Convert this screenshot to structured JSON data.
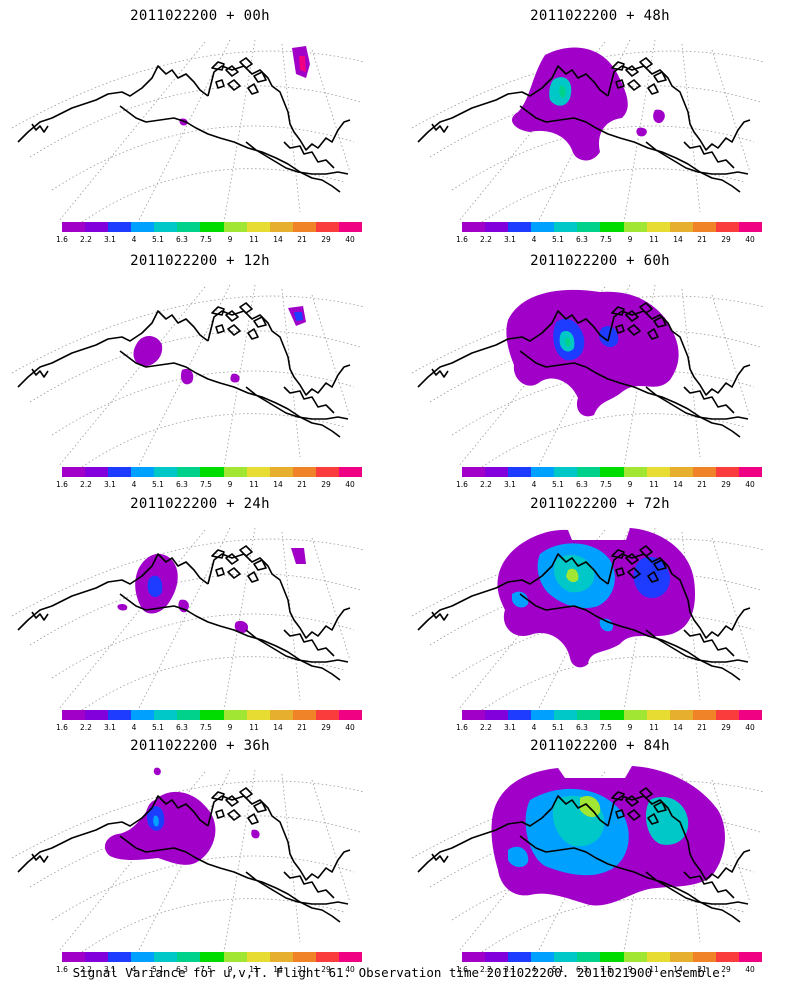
{
  "panels": [
    {
      "title": "2011022200 + 00h",
      "lead_hours": "00h"
    },
    {
      "title": "2011022200 + 48h",
      "lead_hours": "48h"
    },
    {
      "title": "2011022200 + 12h",
      "lead_hours": "12h"
    },
    {
      "title": "2011022200 + 60h",
      "lead_hours": "60h"
    },
    {
      "title": "2011022200 + 24h",
      "lead_hours": "24h"
    },
    {
      "title": "2011022200 + 72h",
      "lead_hours": "72h"
    },
    {
      "title": "2011022200 + 36h",
      "lead_hours": "36h"
    },
    {
      "title": "2011022200 + 84h",
      "lead_hours": "84h"
    }
  ],
  "colorbar": {
    "labels": [
      "1.6",
      "2.2",
      "3.1",
      "4",
      "5.1",
      "6.3",
      "7.5",
      "9",
      "11",
      "14",
      "21",
      "29",
      "40"
    ],
    "colors": [
      "#a000c8",
      "#8200dc",
      "#1e3cff",
      "#00a0ff",
      "#00c8c8",
      "#00d28c",
      "#00dc00",
      "#a0e632",
      "#e6dc32",
      "#e6af2d",
      "#f08228",
      "#fa3c3c",
      "#f00082"
    ]
  },
  "footer": "Signal Variance for u,v,T. Flight 61. Observation time 2011022200. 2011021900 ensemble.",
  "colors": {
    "background": "#ffffff",
    "coastline": "#000000",
    "grid": "#9a9a9a"
  }
}
